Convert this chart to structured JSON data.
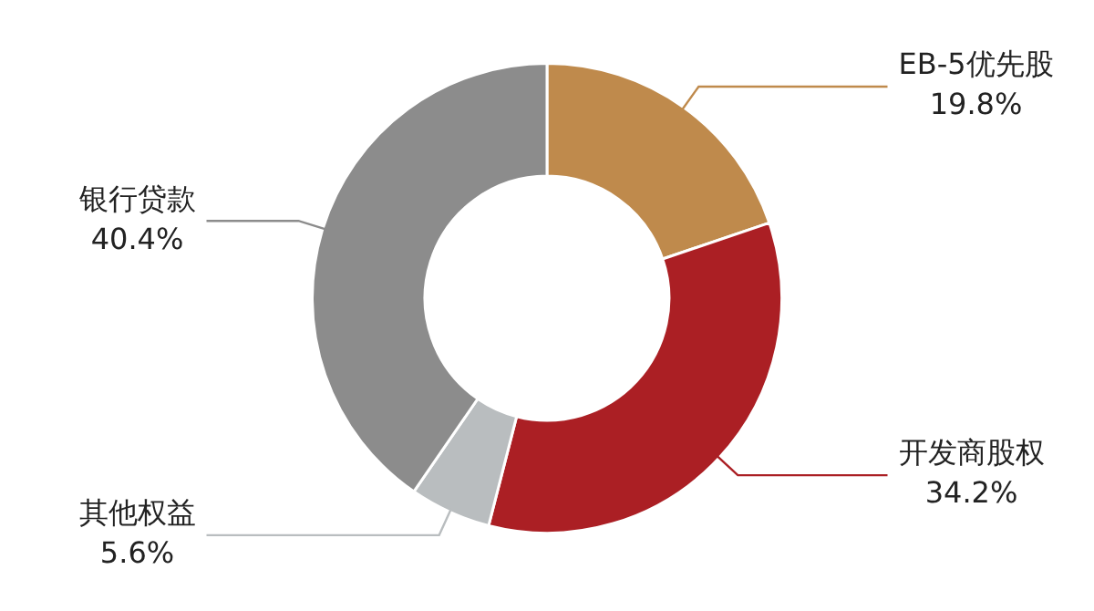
{
  "chart_data": {
    "type": "donut",
    "categories": [
      "EB-5优先股",
      "开发商股权",
      "其他权益",
      "银行贷款"
    ],
    "values": [
      19.8,
      34.2,
      5.6,
      40.4
    ],
    "value_labels": [
      "19.8%",
      "34.2%",
      "5.6%",
      "40.4%"
    ],
    "colors": [
      "#bf8a4c",
      "#ab1f24",
      "#b9bdbf",
      "#8c8c8c"
    ],
    "legend": false
  }
}
